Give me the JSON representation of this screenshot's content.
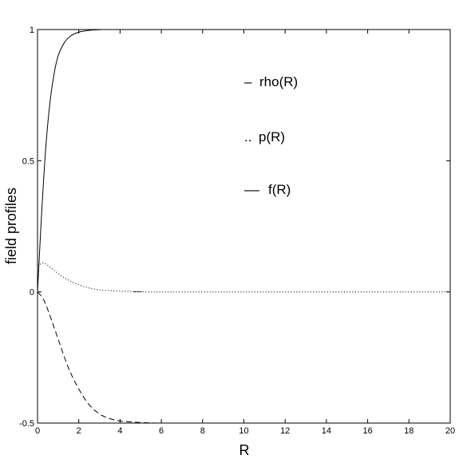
{
  "chart_data": {
    "type": "line",
    "title": "",
    "xlabel": "R",
    "ylabel": "field profiles",
    "xlim": [
      0,
      20
    ],
    "ylim": [
      -0.5,
      1
    ],
    "x_ticks": [
      0,
      2,
      4,
      6,
      8,
      10,
      12,
      14,
      16,
      18,
      20
    ],
    "y_ticks": [
      -0.5,
      0,
      0.5,
      1
    ],
    "y_tick_labels": [
      "-0.5",
      "0",
      "0.5",
      "1"
    ],
    "grid": false,
    "legend_placement": "upper-center",
    "series": [
      {
        "name": "rho(R)",
        "legend_marker": "–",
        "style": "solid",
        "points": [
          [
            0,
            0
          ],
          [
            0.2,
            0.3
          ],
          [
            0.4,
            0.55
          ],
          [
            0.6,
            0.72
          ],
          [
            0.8,
            0.83
          ],
          [
            1.0,
            0.9
          ],
          [
            1.3,
            0.95
          ],
          [
            1.6,
            0.975
          ],
          [
            2.0,
            0.99
          ],
          [
            2.5,
            0.997
          ],
          [
            3.0,
            0.999
          ],
          [
            4.0,
            1.0
          ],
          [
            20,
            1.0
          ]
        ]
      },
      {
        "name": "p(R)",
        "legend_marker": "..",
        "style": "dotted",
        "points": [
          [
            0,
            0.1
          ],
          [
            0.3,
            0.11
          ],
          [
            0.6,
            0.095
          ],
          [
            1.0,
            0.07
          ],
          [
            1.5,
            0.045
          ],
          [
            2.0,
            0.027
          ],
          [
            2.5,
            0.015
          ],
          [
            3.0,
            0.008
          ],
          [
            4.0,
            0.003
          ],
          [
            5.0,
            0.001
          ],
          [
            6.0,
            0.0
          ],
          [
            20,
            0.0
          ]
        ]
      },
      {
        "name": "f(R)",
        "legend_marker": "––",
        "style": "dashed",
        "points": [
          [
            0,
            0
          ],
          [
            0.3,
            -0.03
          ],
          [
            0.6,
            -0.09
          ],
          [
            1.0,
            -0.18
          ],
          [
            1.5,
            -0.29
          ],
          [
            2.0,
            -0.37
          ],
          [
            2.5,
            -0.43
          ],
          [
            3.0,
            -0.465
          ],
          [
            3.5,
            -0.483
          ],
          [
            4.0,
            -0.492
          ],
          [
            5.0,
            -0.498
          ],
          [
            6.0,
            -0.5
          ],
          [
            7.0,
            -0.5
          ]
        ]
      }
    ]
  }
}
